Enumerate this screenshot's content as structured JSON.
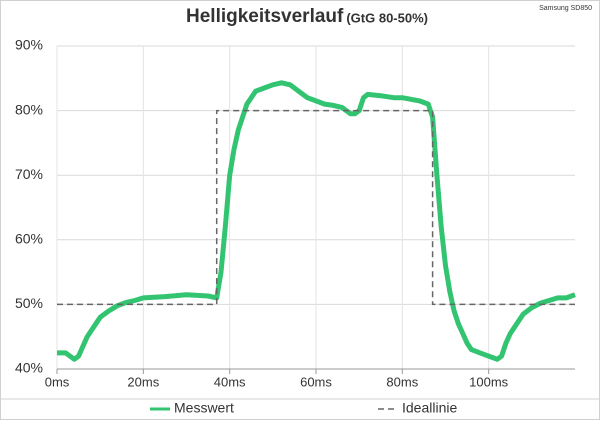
{
  "chart_data": {
    "type": "line",
    "title": "Helligkeitsverlauf",
    "subtitle": "(GtG 80-50%)",
    "source": "Samsung SD850",
    "xlim": [
      0,
      120
    ],
    "xticks": [
      {
        "value": 0,
        "label": "0ms"
      },
      {
        "value": 20,
        "label": "20ms"
      },
      {
        "value": 40,
        "label": "40ms"
      },
      {
        "value": 60,
        "label": "60ms"
      },
      {
        "value": 80,
        "label": "80ms"
      },
      {
        "value": 100,
        "label": "100ms"
      }
    ],
    "ylim": [
      40,
      90
    ],
    "yticks": [
      {
        "value": 40,
        "label": "40%"
      },
      {
        "value": 50,
        "label": "50%"
      },
      {
        "value": 60,
        "label": "60%"
      },
      {
        "value": 70,
        "label": "70%"
      },
      {
        "value": 80,
        "label": "80%"
      },
      {
        "value": 90,
        "label": "90%"
      }
    ],
    "grid": true,
    "legend": "bottom",
    "series": [
      {
        "name": "Messwert",
        "color": "#33c472",
        "style": "solid",
        "x": [
          0,
          2,
          3,
          4,
          5,
          6,
          7,
          8,
          9,
          10,
          12,
          14,
          16,
          18,
          20,
          25,
          30,
          35,
          37,
          38,
          39,
          40,
          41,
          42,
          43,
          44,
          45,
          46,
          48,
          50,
          52,
          54,
          56,
          58,
          60,
          62,
          64,
          66,
          68,
          69,
          70,
          71,
          72,
          75,
          78,
          80,
          84,
          86,
          87,
          88,
          89,
          90,
          91,
          92,
          93,
          94,
          95,
          96,
          98,
          100,
          102,
          103,
          104,
          105,
          106,
          107,
          108,
          110,
          112,
          114,
          116,
          118,
          120
        ],
        "values": [
          42.5,
          42.5,
          42,
          41.5,
          42,
          43.5,
          45,
          46,
          47,
          48,
          49,
          49.8,
          50.3,
          50.6,
          51,
          51.2,
          51.5,
          51.3,
          51,
          55,
          62,
          70,
          74,
          77,
          79,
          81,
          82,
          83,
          83.5,
          84,
          84.3,
          84,
          83,
          82,
          81.5,
          81,
          80.8,
          80.5,
          79.5,
          79.5,
          80,
          82,
          82.5,
          82.3,
          82,
          82,
          81.5,
          81,
          79,
          70,
          62,
          56,
          52,
          49,
          47,
          45.5,
          44,
          43,
          42.5,
          42,
          41.5,
          42,
          44,
          45.5,
          46.5,
          47.5,
          48.5,
          49.5,
          50.2,
          50.6,
          51,
          51,
          51.5
        ]
      },
      {
        "name": "Ideallinie",
        "color": "#666666",
        "style": "dashed",
        "x": [
          0,
          37,
          37,
          87,
          87,
          120
        ],
        "values": [
          50,
          50,
          80,
          80,
          50,
          50
        ]
      }
    ]
  }
}
